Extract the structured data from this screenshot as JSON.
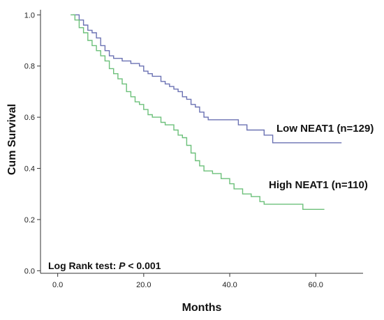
{
  "chart_data": {
    "type": "line",
    "title": "",
    "xlabel": "Months",
    "ylabel": "Cum Survival",
    "xlim": [
      -4,
      71
    ],
    "ylim": [
      -0.01,
      1.02
    ],
    "xticks": [
      0,
      20,
      40,
      60
    ],
    "xtick_labels": [
      "0.0",
      "20.0",
      "40.0",
      "60.0"
    ],
    "yticks": [
      0,
      0.2,
      0.4,
      0.6,
      0.8,
      1.0
    ],
    "ytick_labels": [
      "0.0",
      "0.2",
      "0.4",
      "0.6",
      "0.8",
      "1.0"
    ],
    "grid": false,
    "legend": "none",
    "annotation": {
      "prefix": "Log Rank test: ",
      "italic": "P",
      "suffix": " < 0.001"
    },
    "series": [
      {
        "name": "Low NEAT1 (n=129)",
        "color": "#6b72b3",
        "step": true,
        "points": [
          [
            3.5,
            1.0
          ],
          [
            5,
            0.98
          ],
          [
            6,
            0.96
          ],
          [
            7,
            0.94
          ],
          [
            8,
            0.93
          ],
          [
            9,
            0.91
          ],
          [
            10,
            0.88
          ],
          [
            11,
            0.86
          ],
          [
            12,
            0.84
          ],
          [
            13,
            0.83
          ],
          [
            15,
            0.82
          ],
          [
            17,
            0.81
          ],
          [
            19,
            0.8
          ],
          [
            20,
            0.78
          ],
          [
            21,
            0.77
          ],
          [
            22,
            0.76
          ],
          [
            24,
            0.74
          ],
          [
            25,
            0.73
          ],
          [
            26,
            0.72
          ],
          [
            27,
            0.71
          ],
          [
            28,
            0.7
          ],
          [
            29,
            0.68
          ],
          [
            30,
            0.67
          ],
          [
            31,
            0.65
          ],
          [
            32,
            0.64
          ],
          [
            33,
            0.62
          ],
          [
            34,
            0.6
          ],
          [
            35,
            0.59
          ],
          [
            36,
            0.59
          ],
          [
            38,
            0.59
          ],
          [
            40,
            0.59
          ],
          [
            42,
            0.57
          ],
          [
            44,
            0.55
          ],
          [
            46,
            0.55
          ],
          [
            48,
            0.53
          ],
          [
            50,
            0.5
          ],
          [
            66,
            0.5
          ]
        ]
      },
      {
        "name": "High NEAT1 (n=110)",
        "color": "#6cc07a",
        "step": true,
        "points": [
          [
            3.0,
            1.0
          ],
          [
            4,
            0.98
          ],
          [
            5,
            0.95
          ],
          [
            6,
            0.93
          ],
          [
            7,
            0.9
          ],
          [
            8,
            0.88
          ],
          [
            9,
            0.86
          ],
          [
            10,
            0.84
          ],
          [
            11,
            0.82
          ],
          [
            12,
            0.79
          ],
          [
            13,
            0.77
          ],
          [
            14,
            0.75
          ],
          [
            15,
            0.73
          ],
          [
            16,
            0.7
          ],
          [
            17,
            0.68
          ],
          [
            18,
            0.66
          ],
          [
            19,
            0.65
          ],
          [
            20,
            0.63
          ],
          [
            21,
            0.61
          ],
          [
            22,
            0.6
          ],
          [
            24,
            0.58
          ],
          [
            25,
            0.57
          ],
          [
            27,
            0.55
          ],
          [
            28,
            0.53
          ],
          [
            29,
            0.52
          ],
          [
            30,
            0.49
          ],
          [
            31,
            0.46
          ],
          [
            32,
            0.43
          ],
          [
            33,
            0.41
          ],
          [
            34,
            0.39
          ],
          [
            36,
            0.38
          ],
          [
            38,
            0.36
          ],
          [
            40,
            0.34
          ],
          [
            41,
            0.32
          ],
          [
            43,
            0.3
          ],
          [
            45,
            0.29
          ],
          [
            47,
            0.27
          ],
          [
            48,
            0.26
          ],
          [
            54,
            0.26
          ],
          [
            57,
            0.24
          ],
          [
            62,
            0.24
          ]
        ]
      }
    ]
  }
}
